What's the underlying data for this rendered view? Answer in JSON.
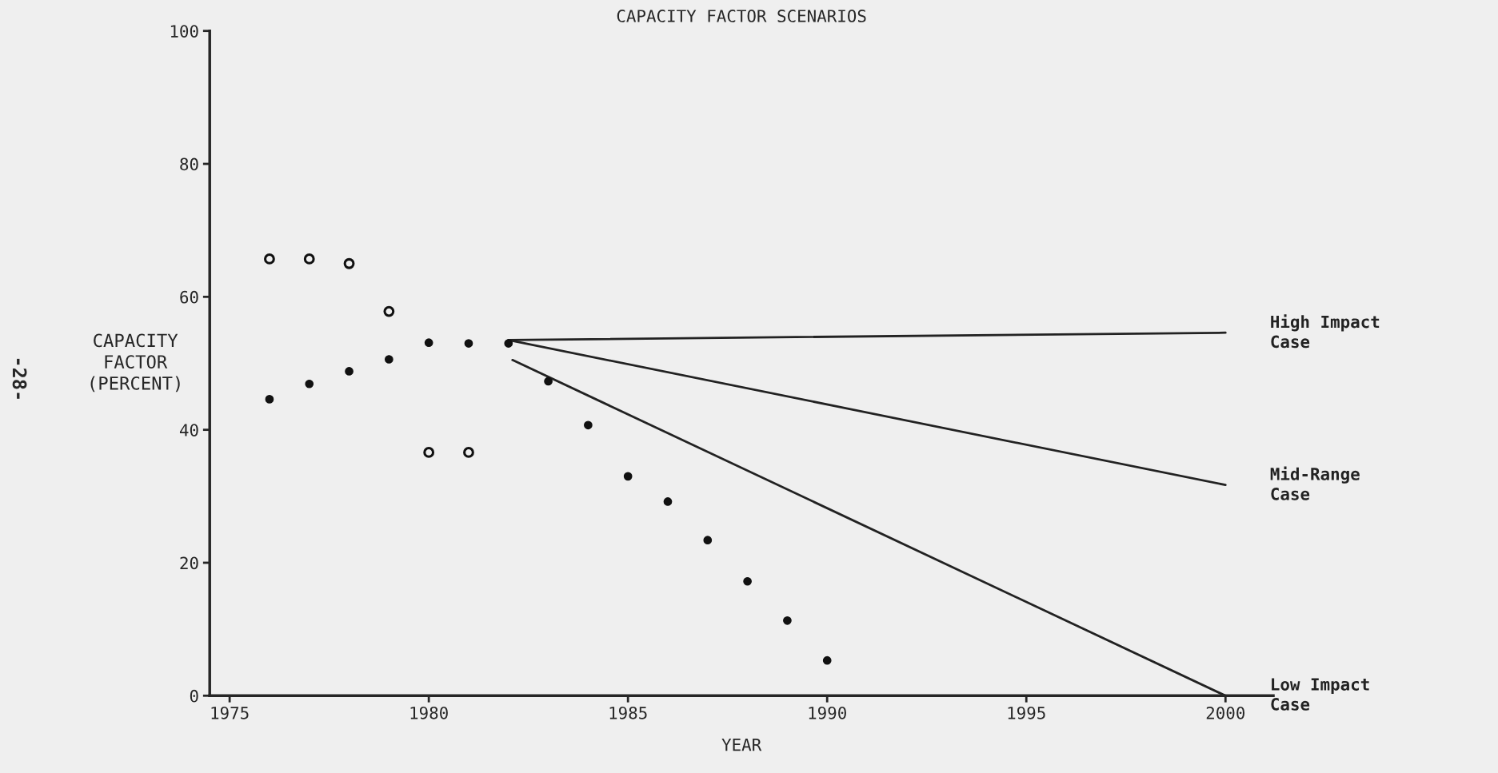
{
  "chart_data": {
    "type": "scatter",
    "title": "CAPACITY FACTOR SCENARIOS",
    "xlabel": "YEAR",
    "ylabel": "CAPACITY\nFACTOR\n(PERCENT)",
    "annotations": [
      "-28-"
    ],
    "xlim": [
      1974.5,
      2001.2
    ],
    "xticks": [
      1975,
      1980,
      1985,
      1990,
      1995,
      2000
    ],
    "ylim": [
      0,
      100
    ],
    "yticks": [
      0,
      20,
      40,
      60,
      80,
      100
    ],
    "grid": false,
    "legend": false,
    "series": [
      {
        "marker": "circle",
        "color": "#111111",
        "x": [
          1976,
          1977,
          1978,
          1979,
          1980,
          1981
        ],
        "values": [
          65.7,
          65.7,
          65,
          57.8,
          36.6,
          36.6
        ]
      },
      {
        "marker": "circle",
        "color": "#111111",
        "x": [
          1976,
          1977,
          1978,
          1979,
          1980,
          1981,
          1982,
          1983,
          1984,
          1985,
          1986,
          1987,
          1988,
          1989,
          1990
        ],
        "values": [
          44.6,
          46.9,
          48.8,
          50.6,
          53.1,
          53,
          53,
          47.3,
          40.7,
          33,
          29.2,
          23.4,
          17.2,
          11.3,
          5.3
        ]
      },
      {
        "type": "line",
        "marker": "none",
        "name": "High Impact\nCase",
        "color": "#222222",
        "x": [
          1982,
          2000
        ],
        "values": [
          53.5,
          54.6
        ]
      },
      {
        "type": "line",
        "marker": "none",
        "name": "Mid-Range\nCase",
        "color": "#222222",
        "x": [
          1982,
          2000
        ],
        "values": [
          53.5,
          31.7
        ]
      },
      {
        "type": "line",
        "marker": "none",
        "name": "Low Impact\nCase",
        "color": "#222222",
        "x": [
          1982.1,
          2000
        ],
        "values": [
          50.5,
          0
        ]
      }
    ]
  }
}
